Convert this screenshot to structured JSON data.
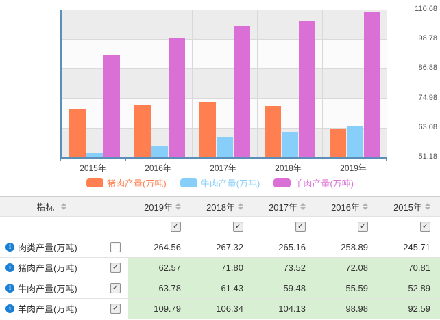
{
  "chart_data": {
    "type": "bar",
    "categories": [
      "2015年",
      "2016年",
      "2017年",
      "2018年",
      "2019年"
    ],
    "series": [
      {
        "name": "猪肉产量(万吨)",
        "color": "#ff7f50",
        "values": [
          70.81,
          72.08,
          73.52,
          71.8,
          62.57
        ]
      },
      {
        "name": "牛肉产量(万吨)",
        "color": "#87cefa",
        "values": [
          52.89,
          55.59,
          59.48,
          61.43,
          63.78
        ]
      },
      {
        "name": "羊肉产量(万吨)",
        "color": "#da70d6",
        "values": [
          92.59,
          98.98,
          104.13,
          106.34,
          109.79
        ]
      }
    ],
    "title": "",
    "xlabel": "",
    "ylabel": "",
    "ylim": [
      51.18,
      110.68
    ],
    "yticks": [
      110.68,
      98.78,
      86.88,
      74.98,
      63.08,
      51.18
    ],
    "grid": true,
    "legend_position": "bottom",
    "band_colors": [
      "#ececec",
      "#fbfbfb"
    ],
    "axis_color": "#5b8fb9"
  },
  "table": {
    "indicator_header": "指标",
    "year_columns": [
      "2019年",
      "2018年",
      "2017年",
      "2016年",
      "2015年"
    ],
    "column_checkboxes": [
      true,
      true,
      true,
      true,
      true
    ],
    "rows": [
      {
        "label": "肉类产量(万吨)",
        "checked": false,
        "highlight": false,
        "values": [
          "264.56",
          "267.32",
          "265.16",
          "258.89",
          "245.71"
        ]
      },
      {
        "label": "猪肉产量(万吨)",
        "checked": true,
        "highlight": true,
        "values": [
          "62.57",
          "71.80",
          "73.52",
          "72.08",
          "70.81"
        ]
      },
      {
        "label": "牛肉产量(万吨)",
        "checked": true,
        "highlight": true,
        "values": [
          "63.78",
          "61.43",
          "59.48",
          "55.59",
          "52.89"
        ]
      },
      {
        "label": "羊肉产量(万吨)",
        "checked": true,
        "highlight": true,
        "values": [
          "109.79",
          "106.34",
          "104.13",
          "98.98",
          "92.59"
        ]
      }
    ],
    "highlight_color": "#d9efd3",
    "info_icon_color": "#1b7fd4"
  }
}
